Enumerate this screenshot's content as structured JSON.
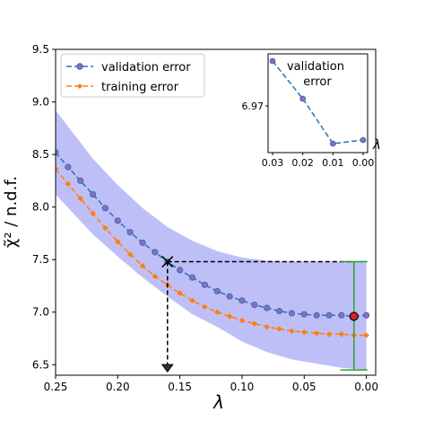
{
  "chart_data": {
    "type": "line",
    "xlabel": "λ",
    "ylabel": "χ̃² / n.d.f.",
    "xlim": [
      0.25,
      -0.0075
    ],
    "ylim": [
      6.4,
      9.5
    ],
    "x_ticks": [
      0.25,
      0.2,
      0.15,
      0.1,
      0.05,
      0.0
    ],
    "x_tick_labels": [
      "0.25",
      "0.20",
      "0.15",
      "0.10",
      "0.05",
      "0.00"
    ],
    "y_ticks": [
      6.5,
      7.0,
      7.5,
      8.0,
      8.5,
      9.0,
      9.5
    ],
    "y_tick_labels": [
      "6.5",
      "7.0",
      "7.5",
      "8.0",
      "8.5",
      "9.0",
      "9.5"
    ],
    "legend_position": "top-left",
    "series": [
      {
        "name": "validation error",
        "color": "#1f77b4",
        "marker_color": "#9467bd",
        "x": [
          0.25,
          0.24,
          0.23,
          0.22,
          0.21,
          0.2,
          0.19,
          0.18,
          0.17,
          0.16,
          0.15,
          0.14,
          0.13,
          0.12,
          0.11,
          0.1,
          0.09,
          0.08,
          0.07,
          0.06,
          0.05,
          0.04,
          0.03,
          0.02,
          0.01,
          0.0
        ],
        "y": [
          8.52,
          8.38,
          8.25,
          8.12,
          7.99,
          7.87,
          7.76,
          7.66,
          7.57,
          7.48,
          7.4,
          7.33,
          7.26,
          7.2,
          7.15,
          7.11,
          7.07,
          7.04,
          7.01,
          6.99,
          6.98,
          6.97,
          6.97,
          6.97,
          6.96,
          6.97
        ]
      },
      {
        "name": "training error",
        "color": "#ff7f0e",
        "x": [
          0.25,
          0.24,
          0.23,
          0.22,
          0.21,
          0.2,
          0.19,
          0.18,
          0.17,
          0.16,
          0.15,
          0.14,
          0.13,
          0.12,
          0.11,
          0.1,
          0.09,
          0.08,
          0.07,
          0.06,
          0.05,
          0.04,
          0.03,
          0.02,
          0.01,
          0.0
        ],
        "y": [
          8.36,
          8.22,
          8.08,
          7.94,
          7.8,
          7.67,
          7.55,
          7.44,
          7.34,
          7.26,
          7.18,
          7.11,
          7.05,
          7.0,
          6.96,
          6.92,
          6.89,
          6.86,
          6.84,
          6.82,
          6.81,
          6.8,
          6.79,
          6.79,
          6.78,
          6.78
        ]
      }
    ],
    "band": {
      "color": "#aaaaf5",
      "x": [
        0.25,
        0.22,
        0.2,
        0.18,
        0.16,
        0.14,
        0.12,
        0.1,
        0.08,
        0.06,
        0.04,
        0.02,
        0.0
      ],
      "upper": [
        8.92,
        8.46,
        8.21,
        7.99,
        7.81,
        7.68,
        7.58,
        7.52,
        7.49,
        7.48,
        7.48,
        7.48,
        7.49
      ],
      "lower": [
        8.12,
        7.74,
        7.53,
        7.33,
        7.15,
        6.98,
        6.86,
        6.72,
        6.62,
        6.55,
        6.51,
        6.47,
        6.45
      ]
    },
    "annotations": {
      "cross_point": {
        "x": 0.16,
        "y": 7.48
      },
      "hline_y": 7.48,
      "vline_to_y": 6.45,
      "highlighted_point": {
        "x": 0.01,
        "y": 6.96
      },
      "errorbar": {
        "x": 0.01,
        "low": 6.45,
        "high": 7.48
      }
    },
    "inset": {
      "title": "validation error",
      "xlabel": "λ",
      "x": [
        0.03,
        0.02,
        0.01,
        0.0
      ],
      "x_tick_labels": [
        "0.03",
        "0.02",
        "0.01",
        "0.00"
      ],
      "y": [
        6.9725,
        6.9704,
        6.9679,
        6.9681
      ],
      "y_tick": 6.97,
      "y_tick_label": "6.97",
      "xlim": [
        0.0315,
        -0.0015
      ],
      "ylim": [
        6.9674,
        6.9729
      ]
    }
  }
}
